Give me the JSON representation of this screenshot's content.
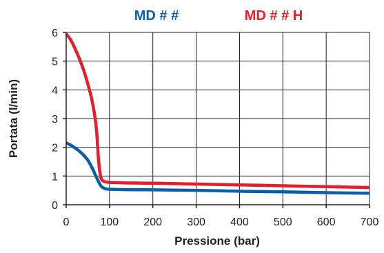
{
  "chart_data": {
    "type": "line",
    "xlabel": "Pressione (bar)",
    "ylabel": "Portata (l/min)",
    "xlim": [
      0,
      700
    ],
    "ylim": [
      0,
      6
    ],
    "xticks": [
      0,
      100,
      200,
      300,
      400,
      500,
      600,
      700
    ],
    "yticks": [
      0,
      1,
      2,
      3,
      4,
      5,
      6
    ],
    "grid": true,
    "legend_position": "top",
    "series": [
      {
        "name": "MD # #",
        "color": "#0a5ea8",
        "x": [
          0,
          10,
          20,
          30,
          40,
          50,
          60,
          70,
          80,
          90,
          100,
          200,
          300,
          400,
          500,
          600,
          700
        ],
        "y": [
          2.15,
          2.08,
          1.98,
          1.87,
          1.73,
          1.55,
          1.28,
          0.95,
          0.66,
          0.56,
          0.54,
          0.52,
          0.5,
          0.47,
          0.45,
          0.42,
          0.4
        ]
      },
      {
        "name": "MD # # H",
        "color": "#e31e2d",
        "x": [
          0,
          10,
          20,
          30,
          40,
          50,
          60,
          70,
          75,
          80,
          85,
          90,
          100,
          200,
          300,
          400,
          500,
          600,
          700
        ],
        "y": [
          5.95,
          5.75,
          5.45,
          5.1,
          4.7,
          4.2,
          3.6,
          2.6,
          1.5,
          0.95,
          0.83,
          0.8,
          0.78,
          0.75,
          0.72,
          0.69,
          0.66,
          0.63,
          0.6
        ]
      }
    ]
  }
}
